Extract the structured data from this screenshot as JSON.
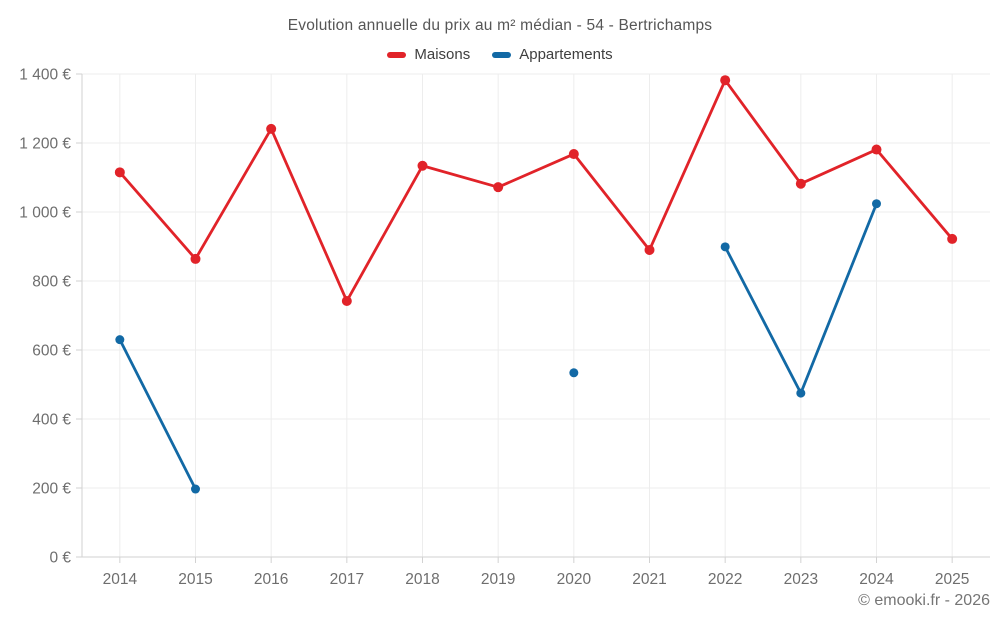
{
  "chart": {
    "title": "Evolution annuelle du prix au m² médian - 54 - Bertrichamps",
    "footer": "© emooki.fr - 2026"
  },
  "chart_data": {
    "type": "line",
    "title": "Evolution annuelle du prix au m² médian - 54 - Bertrichamps",
    "categories": [
      "2014",
      "2015",
      "2016",
      "2017",
      "2018",
      "2019",
      "2020",
      "2021",
      "2022",
      "2023",
      "2024",
      "2025"
    ],
    "series": [
      {
        "name": "Maisons",
        "color": "#e12329",
        "values": [
          1115,
          864,
          1241,
          742,
          1134,
          1072,
          1168,
          890,
          1382,
          1082,
          1181,
          922
        ]
      },
      {
        "name": "Appartements",
        "color": "#1269a5",
        "values": [
          630,
          197,
          null,
          null,
          null,
          null,
          534,
          null,
          899,
          475,
          1024,
          null
        ]
      }
    ],
    "ylim": [
      0,
      1400
    ],
    "yticks": [
      {
        "value": 0,
        "label": "0 €"
      },
      {
        "value": 200,
        "label": "200 €"
      },
      {
        "value": 400,
        "label": "400 €"
      },
      {
        "value": 600,
        "label": "600 €"
      },
      {
        "value": 800,
        "label": "800 €"
      },
      {
        "value": 1000,
        "label": "1 000 €"
      },
      {
        "value": 1200,
        "label": "1 200 €"
      },
      {
        "value": 1400,
        "label": "1 400 €"
      }
    ],
    "grid": true,
    "legend_position": "top",
    "colors": {
      "gridline": "#ededed",
      "axis_line": "#d2d2d2",
      "tick_label": "#6e6e6e"
    }
  }
}
